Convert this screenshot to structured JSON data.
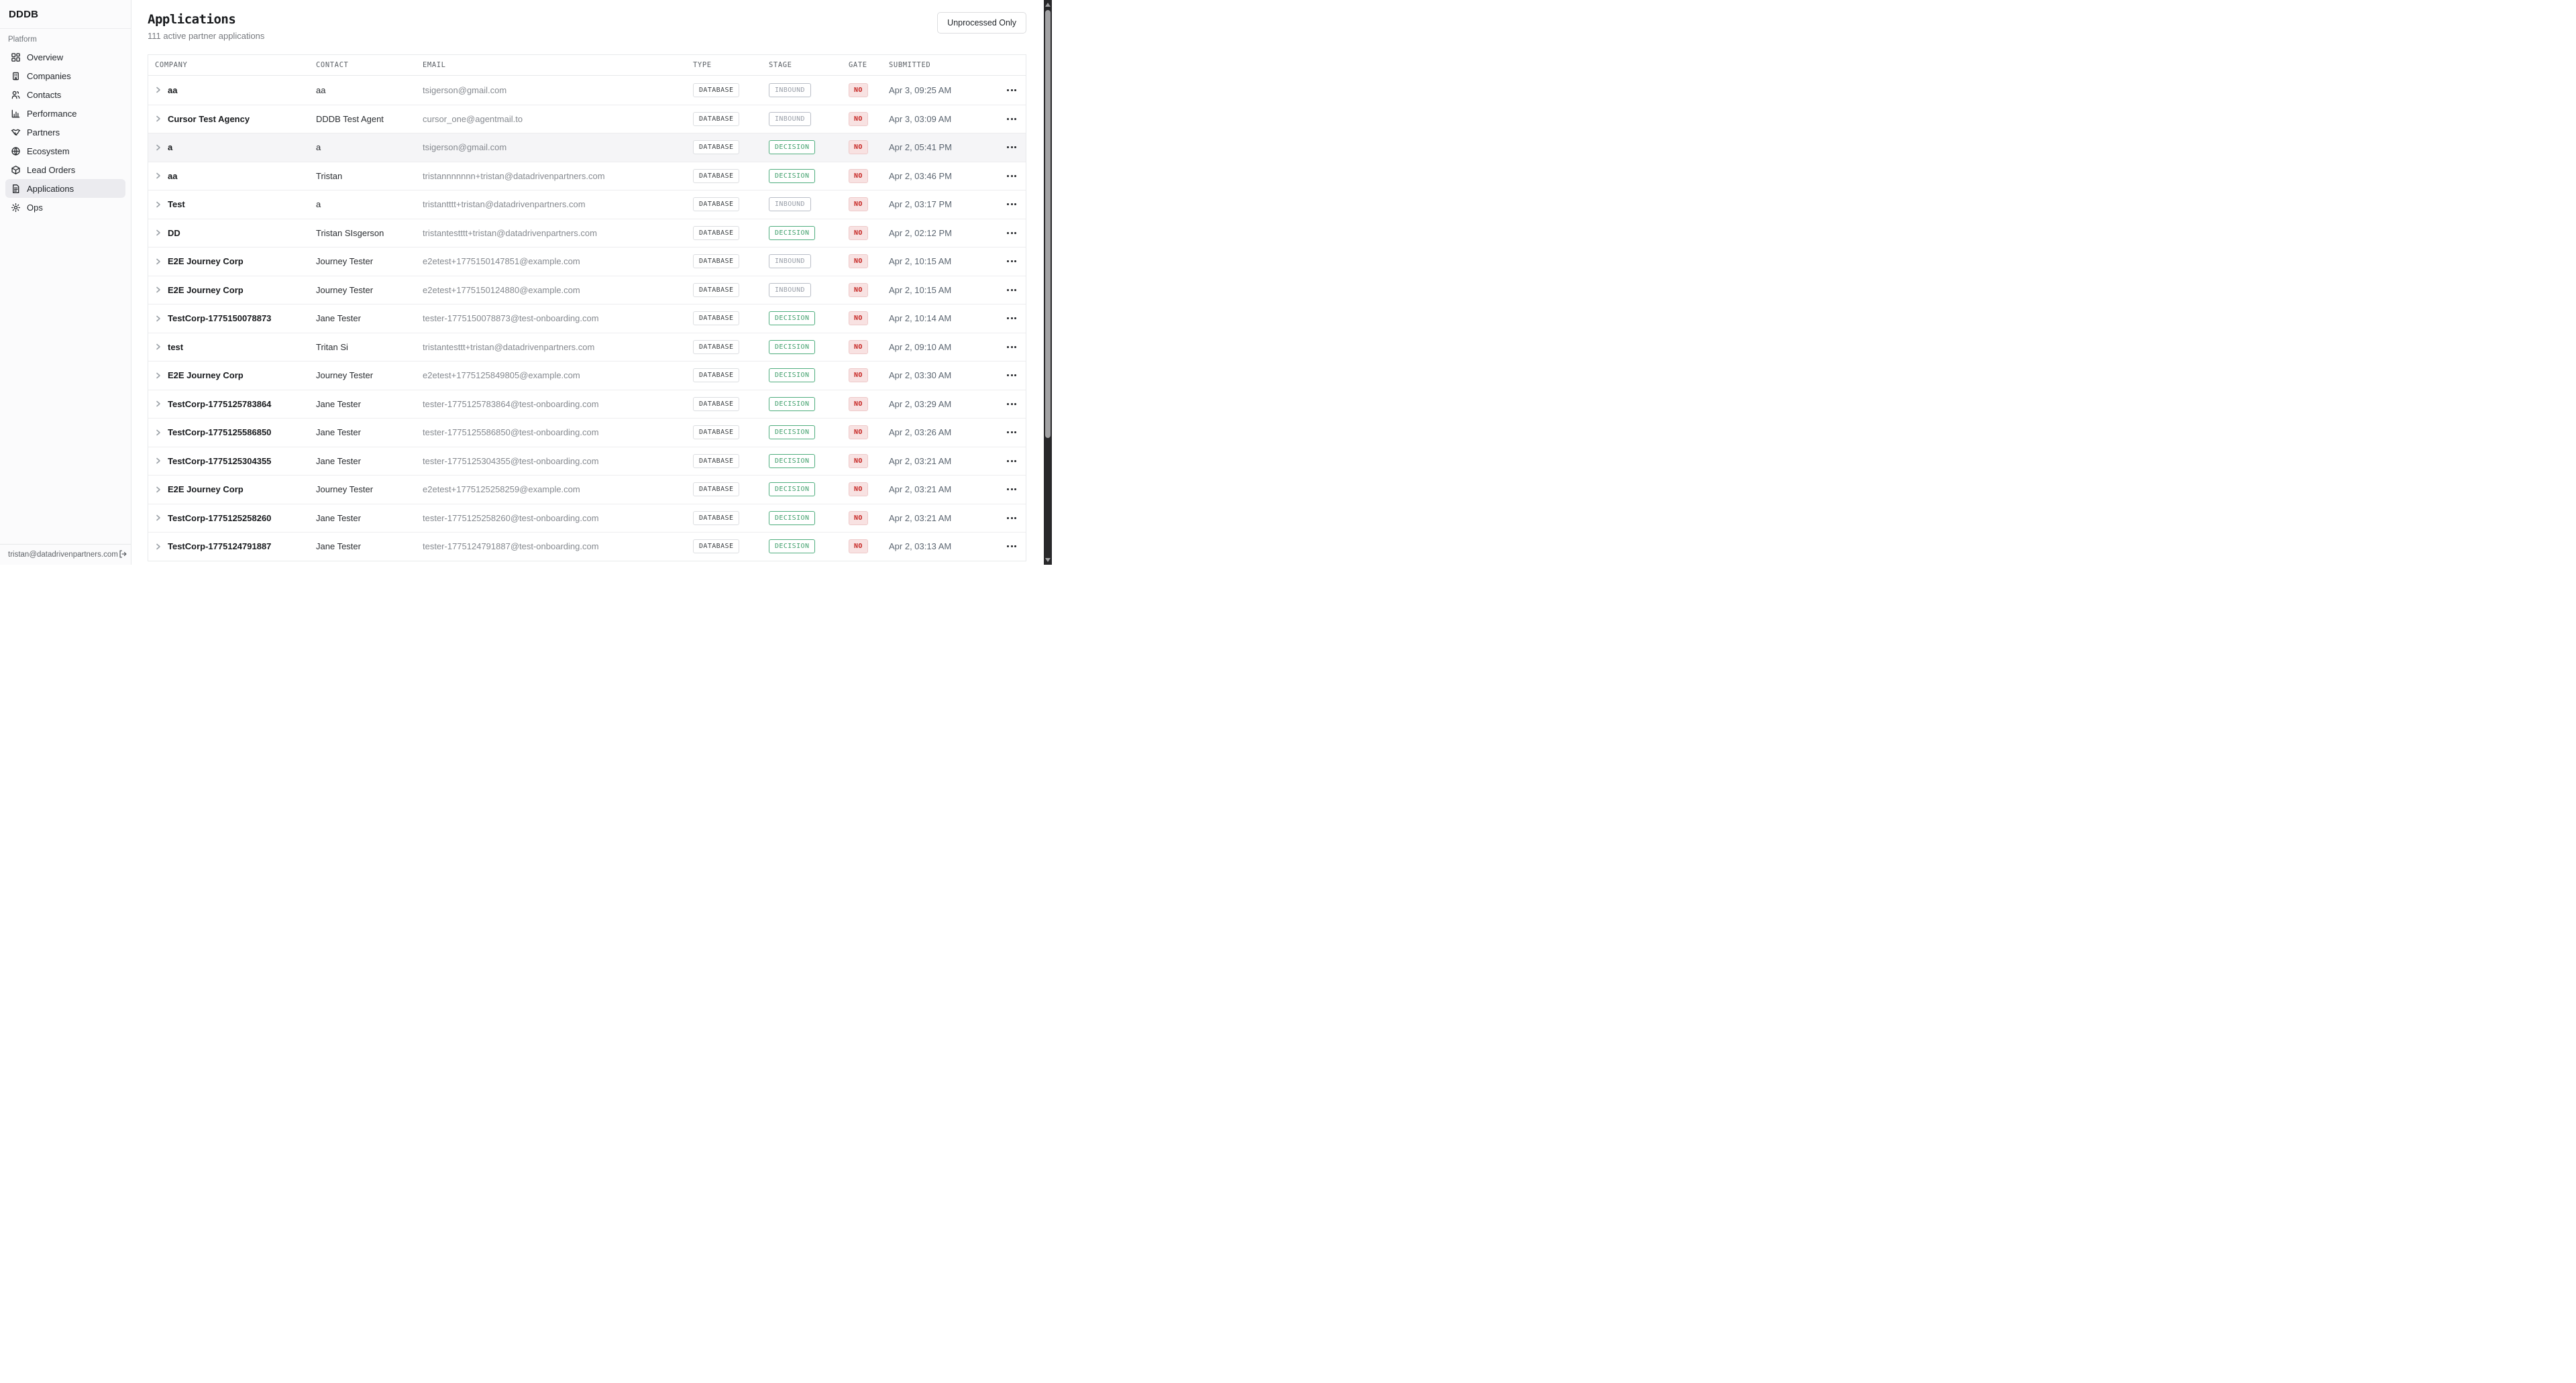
{
  "sidebar": {
    "brand": "DDDB",
    "section_label": "Platform",
    "items": [
      {
        "label": "Overview",
        "icon": "overview-grid-icon",
        "selected": false
      },
      {
        "label": "Companies",
        "icon": "building-icon",
        "selected": false
      },
      {
        "label": "Contacts",
        "icon": "contacts-icon",
        "selected": false
      },
      {
        "label": "Performance",
        "icon": "bar-chart-icon",
        "selected": false
      },
      {
        "label": "Partners",
        "icon": "handshake-icon",
        "selected": false
      },
      {
        "label": "Ecosystem",
        "icon": "globe-icon",
        "selected": false
      },
      {
        "label": "Lead Orders",
        "icon": "package-icon",
        "selected": false
      },
      {
        "label": "Applications",
        "icon": "document-icon",
        "selected": true
      },
      {
        "label": "Ops",
        "icon": "gear-icon",
        "selected": false
      }
    ],
    "footer": {
      "email": "tristan@datadrivenpartners.com",
      "logout_icon": "logout-icon"
    }
  },
  "header": {
    "title": "Applications",
    "subtitle": "111 active partner applications",
    "filter_button": "Unprocessed Only"
  },
  "table": {
    "columns": [
      "COMPANY",
      "CONTACT",
      "EMAIL",
      "TYPE",
      "STAGE",
      "GATE",
      "SUBMITTED"
    ],
    "row_icons": {
      "expand": "chevron-right-icon",
      "menu": "ellipsis-icon"
    },
    "rows": [
      {
        "company": "aa",
        "contact": "aa",
        "email": "tsigerson@gmail.com",
        "type": "DATABASE",
        "stage": "INBOUND",
        "gate": "NO",
        "submitted": "Apr 3, 09:25 AM",
        "highlighted": false
      },
      {
        "company": "Cursor Test Agency",
        "contact": "DDDB Test Agent",
        "email": "cursor_one@agentmail.to",
        "type": "DATABASE",
        "stage": "INBOUND",
        "gate": "NO",
        "submitted": "Apr 3, 03:09 AM",
        "highlighted": false
      },
      {
        "company": "a",
        "contact": "a",
        "email": "tsigerson@gmail.com",
        "type": "DATABASE",
        "stage": "DECISION",
        "gate": "NO",
        "submitted": "Apr 2, 05:41 PM",
        "highlighted": true
      },
      {
        "company": "aa",
        "contact": "Tristan",
        "email": "tristannnnnnn+tristan@datadrivenpartners.com",
        "type": "DATABASE",
        "stage": "DECISION",
        "gate": "NO",
        "submitted": "Apr 2, 03:46 PM",
        "highlighted": false
      },
      {
        "company": "Test",
        "contact": "a",
        "email": "tristantttt+tristan@datadrivenpartners.com",
        "type": "DATABASE",
        "stage": "INBOUND",
        "gate": "NO",
        "submitted": "Apr 2, 03:17 PM",
        "highlighted": false
      },
      {
        "company": "DD",
        "contact": "Tristan SIsgerson",
        "email": "tristantestttt+tristan@datadrivenpartners.com",
        "type": "DATABASE",
        "stage": "DECISION",
        "gate": "NO",
        "submitted": "Apr 2, 02:12 PM",
        "highlighted": false
      },
      {
        "company": "E2E Journey Corp",
        "contact": "Journey Tester",
        "email": "e2etest+1775150147851@example.com",
        "type": "DATABASE",
        "stage": "INBOUND",
        "gate": "NO",
        "submitted": "Apr 2, 10:15 AM",
        "highlighted": false
      },
      {
        "company": "E2E Journey Corp",
        "contact": "Journey Tester",
        "email": "e2etest+1775150124880@example.com",
        "type": "DATABASE",
        "stage": "INBOUND",
        "gate": "NO",
        "submitted": "Apr 2, 10:15 AM",
        "highlighted": false
      },
      {
        "company": "TestCorp-1775150078873",
        "contact": "Jane Tester",
        "email": "tester-1775150078873@test-onboarding.com",
        "type": "DATABASE",
        "stage": "DECISION",
        "gate": "NO",
        "submitted": "Apr 2, 10:14 AM",
        "highlighted": false
      },
      {
        "company": "test",
        "contact": "Tritan Si",
        "email": "tristantesttt+tristan@datadrivenpartners.com",
        "type": "DATABASE",
        "stage": "DECISION",
        "gate": "NO",
        "submitted": "Apr 2, 09:10 AM",
        "highlighted": false
      },
      {
        "company": "E2E Journey Corp",
        "contact": "Journey Tester",
        "email": "e2etest+1775125849805@example.com",
        "type": "DATABASE",
        "stage": "DECISION",
        "gate": "NO",
        "submitted": "Apr 2, 03:30 AM",
        "highlighted": false
      },
      {
        "company": "TestCorp-1775125783864",
        "contact": "Jane Tester",
        "email": "tester-1775125783864@test-onboarding.com",
        "type": "DATABASE",
        "stage": "DECISION",
        "gate": "NO",
        "submitted": "Apr 2, 03:29 AM",
        "highlighted": false
      },
      {
        "company": "TestCorp-1775125586850",
        "contact": "Jane Tester",
        "email": "tester-1775125586850@test-onboarding.com",
        "type": "DATABASE",
        "stage": "DECISION",
        "gate": "NO",
        "submitted": "Apr 2, 03:26 AM",
        "highlighted": false
      },
      {
        "company": "TestCorp-1775125304355",
        "contact": "Jane Tester",
        "email": "tester-1775125304355@test-onboarding.com",
        "type": "DATABASE",
        "stage": "DECISION",
        "gate": "NO",
        "submitted": "Apr 2, 03:21 AM",
        "highlighted": false
      },
      {
        "company": "E2E Journey Corp",
        "contact": "Journey Tester",
        "email": "e2etest+1775125258259@example.com",
        "type": "DATABASE",
        "stage": "DECISION",
        "gate": "NO",
        "submitted": "Apr 2, 03:21 AM",
        "highlighted": false
      },
      {
        "company": "TestCorp-1775125258260",
        "contact": "Jane Tester",
        "email": "tester-1775125258260@test-onboarding.com",
        "type": "DATABASE",
        "stage": "DECISION",
        "gate": "NO",
        "submitted": "Apr 2, 03:21 AM",
        "highlighted": false
      },
      {
        "company": "TestCorp-1775124791887",
        "contact": "Jane Tester",
        "email": "tester-1775124791887@test-onboarding.com",
        "type": "DATABASE",
        "stage": "DECISION",
        "gate": "NO",
        "submitted": "Apr 2, 03:13 AM",
        "highlighted": false
      }
    ]
  },
  "colors": {
    "stage_decision_green": "#3f9f6b",
    "stage_inbound_gray": "#979da7",
    "gate_no_text_red": "#c5221f",
    "gate_no_bg_pink": "#f8e2e2",
    "selected_nav_bg": "#ebebef",
    "scrollbar_track": "#28282a",
    "scrollbar_thumb": "#a2a2a4"
  }
}
